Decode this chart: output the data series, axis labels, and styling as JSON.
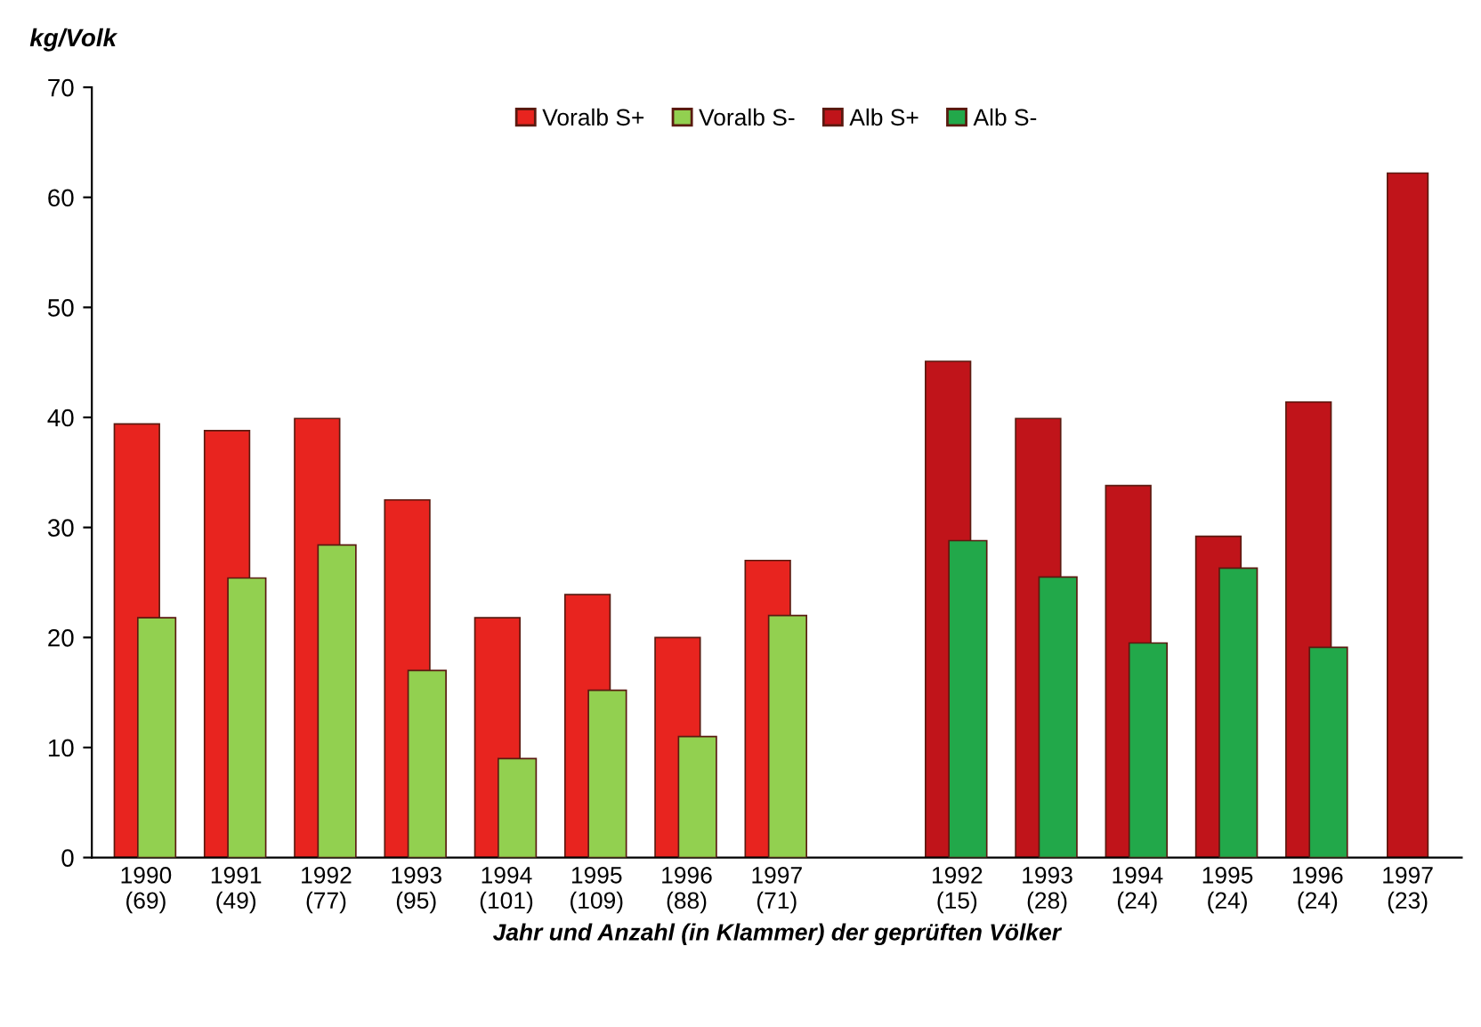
{
  "chart_data": {
    "type": "bar",
    "ylabel": "kg/Volk",
    "xlabel": "Jahr und Anzahl (in Klammer) der geprüften Völker",
    "categories": [
      "1990\n(69)",
      "1991\n(49)",
      "1992\n(77)",
      "1993\n(95)",
      "1994\n(101)",
      "1995\n(109)",
      "1996\n(88)",
      "1997\n(71)",
      null,
      "1992\n(15)",
      "1993\n(28)",
      "1994\n(24)",
      "1995\n(24)",
      "1996\n(24)",
      "1997\n(23)"
    ],
    "series": [
      {
        "name": "Voralb S+",
        "color": "#e8241f",
        "values": [
          39.4,
          38.8,
          39.9,
          32.5,
          21.8,
          23.9,
          20.0,
          27.0,
          null,
          null,
          null,
          null,
          null,
          null,
          null
        ]
      },
      {
        "name": "Voralb S-",
        "color": "#92d050",
        "values": [
          21.8,
          25.4,
          28.4,
          17.0,
          9.0,
          15.2,
          11.0,
          22.0,
          null,
          null,
          null,
          null,
          null,
          null,
          null
        ]
      },
      {
        "name": "Alb S+",
        "color": "#c0141a",
        "values": [
          null,
          null,
          null,
          null,
          null,
          null,
          null,
          null,
          null,
          45.1,
          39.9,
          33.8,
          29.2,
          41.4,
          62.2
        ]
      },
      {
        "name": "Alb S-",
        "color": "#22a84a",
        "values": [
          null,
          null,
          null,
          null,
          null,
          null,
          null,
          null,
          null,
          28.8,
          25.5,
          19.5,
          26.3,
          19.1,
          null
        ]
      }
    ],
    "ylim": [
      0,
      70
    ],
    "yticks": [
      0,
      10,
      20,
      30,
      40,
      50,
      60,
      70
    ],
    "grid": false,
    "legend": "top"
  }
}
